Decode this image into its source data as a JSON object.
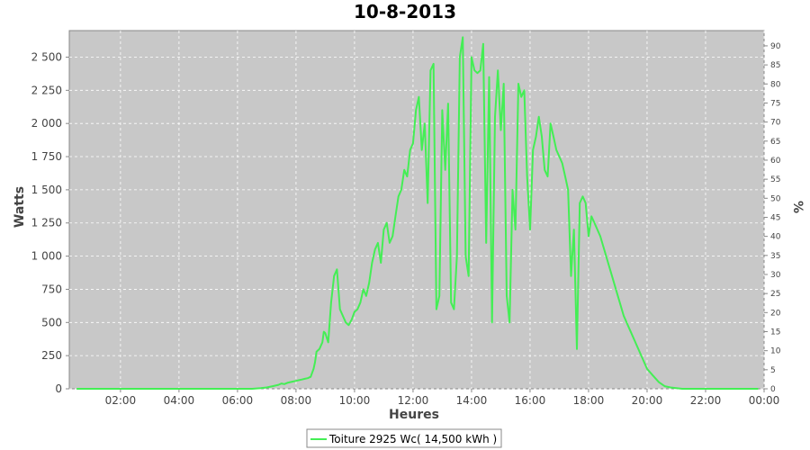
{
  "chart_data": {
    "type": "line",
    "title": "10-8-2013",
    "xlabel": "Heures",
    "ylabel": "Watts",
    "ylabel_right": "%",
    "xlim": [
      0.25,
      24.0
    ],
    "ylim": [
      0,
      2700
    ],
    "ylim_right": [
      0,
      94
    ],
    "x_ticks": [
      "02:00",
      "04:00",
      "06:00",
      "08:00",
      "10:00",
      "12:00",
      "14:00",
      "16:00",
      "18:00",
      "20:00",
      "22:00",
      "00:00"
    ],
    "y_ticks": [
      "0",
      "250",
      "500",
      "750",
      "1 000",
      "1 250",
      "1 500",
      "1 750",
      "2 000",
      "2 250",
      "2 500"
    ],
    "y_ticks_right": [
      "0",
      "5",
      "10",
      "15",
      "20",
      "25",
      "30",
      "35",
      "40",
      "45",
      "50",
      "55",
      "60",
      "65",
      "70",
      "75",
      "80",
      "85",
      "90"
    ],
    "grid": true,
    "legend_position": "bottom",
    "colors": {
      "plot_background": "#c8c8c8",
      "line": "#44ee55",
      "grid": "#ffffff"
    },
    "series": [
      {
        "name": "Toiture 2925 Wc( 14,500 kWh )",
        "x": [
          0.5,
          1.0,
          2.0,
          3.0,
          4.0,
          5.0,
          6.0,
          6.5,
          6.8,
          7.0,
          7.2,
          7.4,
          7.5,
          7.6,
          7.7,
          7.8,
          7.9,
          8.0,
          8.1,
          8.2,
          8.3,
          8.4,
          8.5,
          8.6,
          8.65,
          8.7,
          8.8,
          8.9,
          8.95,
          9.0,
          9.1,
          9.2,
          9.3,
          9.4,
          9.5,
          9.6,
          9.7,
          9.8,
          9.9,
          10.0,
          10.1,
          10.2,
          10.3,
          10.4,
          10.5,
          10.6,
          10.7,
          10.8,
          10.9,
          11.0,
          11.1,
          11.2,
          11.3,
          11.4,
          11.5,
          11.6,
          11.7,
          11.8,
          11.9,
          12.0,
          12.1,
          12.2,
          12.3,
          12.4,
          12.5,
          12.6,
          12.7,
          12.8,
          12.9,
          13.0,
          13.1,
          13.2,
          13.3,
          13.4,
          13.5,
          13.6,
          13.7,
          13.8,
          13.9,
          14.0,
          14.1,
          14.2,
          14.3,
          14.4,
          14.5,
          14.6,
          14.7,
          14.8,
          14.9,
          15.0,
          15.1,
          15.2,
          15.3,
          15.4,
          15.5,
          15.6,
          15.7,
          15.8,
          15.9,
          16.0,
          16.1,
          16.2,
          16.3,
          16.4,
          16.5,
          16.6,
          16.7,
          16.8,
          16.9,
          17.0,
          17.1,
          17.2,
          17.3,
          17.4,
          17.5,
          17.6,
          17.7,
          17.8,
          17.9,
          18.0,
          18.1,
          18.2,
          18.4,
          18.6,
          18.8,
          19.0,
          19.2,
          19.4,
          19.6,
          19.8,
          20.0,
          20.2,
          20.4,
          20.6,
          20.8,
          21.0,
          21.2,
          21.5,
          22.0,
          23.0,
          23.8
        ],
        "values": [
          0,
          0,
          0,
          0,
          0,
          0,
          0,
          0,
          5,
          10,
          20,
          30,
          40,
          35,
          45,
          50,
          55,
          60,
          65,
          70,
          75,
          80,
          90,
          150,
          200,
          280,
          300,
          350,
          430,
          420,
          350,
          650,
          850,
          900,
          600,
          550,
          500,
          480,
          520,
          580,
          600,
          650,
          750,
          700,
          800,
          950,
          1050,
          1100,
          950,
          1200,
          1250,
          1100,
          1150,
          1300,
          1450,
          1500,
          1650,
          1600,
          1800,
          1850,
          2100,
          2200,
          1800,
          2000,
          1400,
          2400,
          2450,
          600,
          700,
          2100,
          1650,
          2150,
          650,
          600,
          1000,
          2500,
          2650,
          1000,
          850,
          2500,
          2400,
          2380,
          2400,
          2600,
          1100,
          2350,
          500,
          2050,
          2400,
          1950,
          2300,
          700,
          500,
          1500,
          1200,
          2300,
          2200,
          2250,
          1600,
          1200,
          1800,
          1900,
          2050,
          1900,
          1650,
          1600,
          2000,
          1900,
          1800,
          1750,
          1700,
          1600,
          1500,
          850,
          1200,
          300,
          1400,
          1450,
          1400,
          1150,
          1300,
          1250,
          1150,
          1000,
          850,
          700,
          550,
          450,
          350,
          250,
          150,
          100,
          50,
          20,
          10,
          5,
          0,
          0,
          0,
          0,
          0
        ]
      }
    ]
  }
}
